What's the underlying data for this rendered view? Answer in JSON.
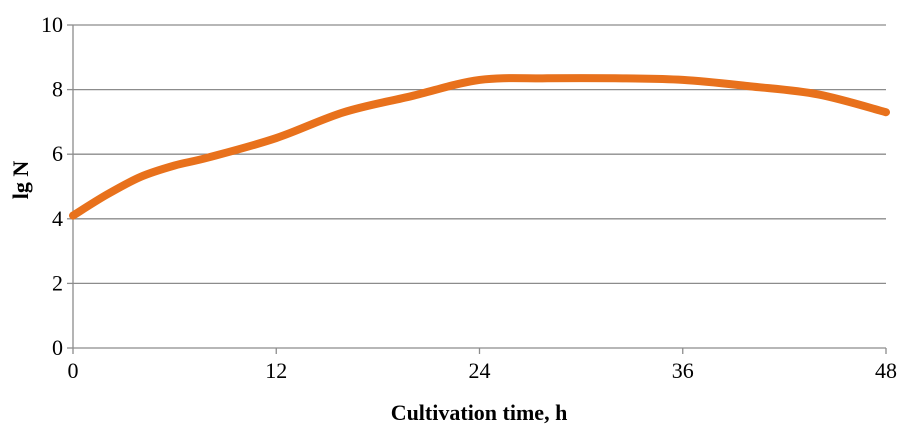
{
  "chart_data": {
    "type": "line",
    "title": "",
    "xlabel": "Cultivation time, h",
    "ylabel": "lg N",
    "xlim": [
      0,
      48
    ],
    "ylim": [
      0,
      10
    ],
    "xticks": [
      0,
      12,
      24,
      36,
      48
    ],
    "yticks": [
      0,
      2,
      4,
      6,
      8,
      10
    ],
    "grid": "horizontal",
    "legend": "none",
    "series": [
      {
        "color": "#e8711c",
        "x": [
          0,
          2,
          4,
          6,
          8,
          12,
          16,
          20,
          24,
          28,
          32,
          36,
          40,
          44,
          48
        ],
        "y": [
          4.1,
          4.75,
          5.3,
          5.65,
          5.9,
          6.5,
          7.3,
          7.8,
          8.3,
          8.35,
          8.35,
          8.3,
          8.1,
          7.85,
          7.3
        ]
      }
    ]
  }
}
